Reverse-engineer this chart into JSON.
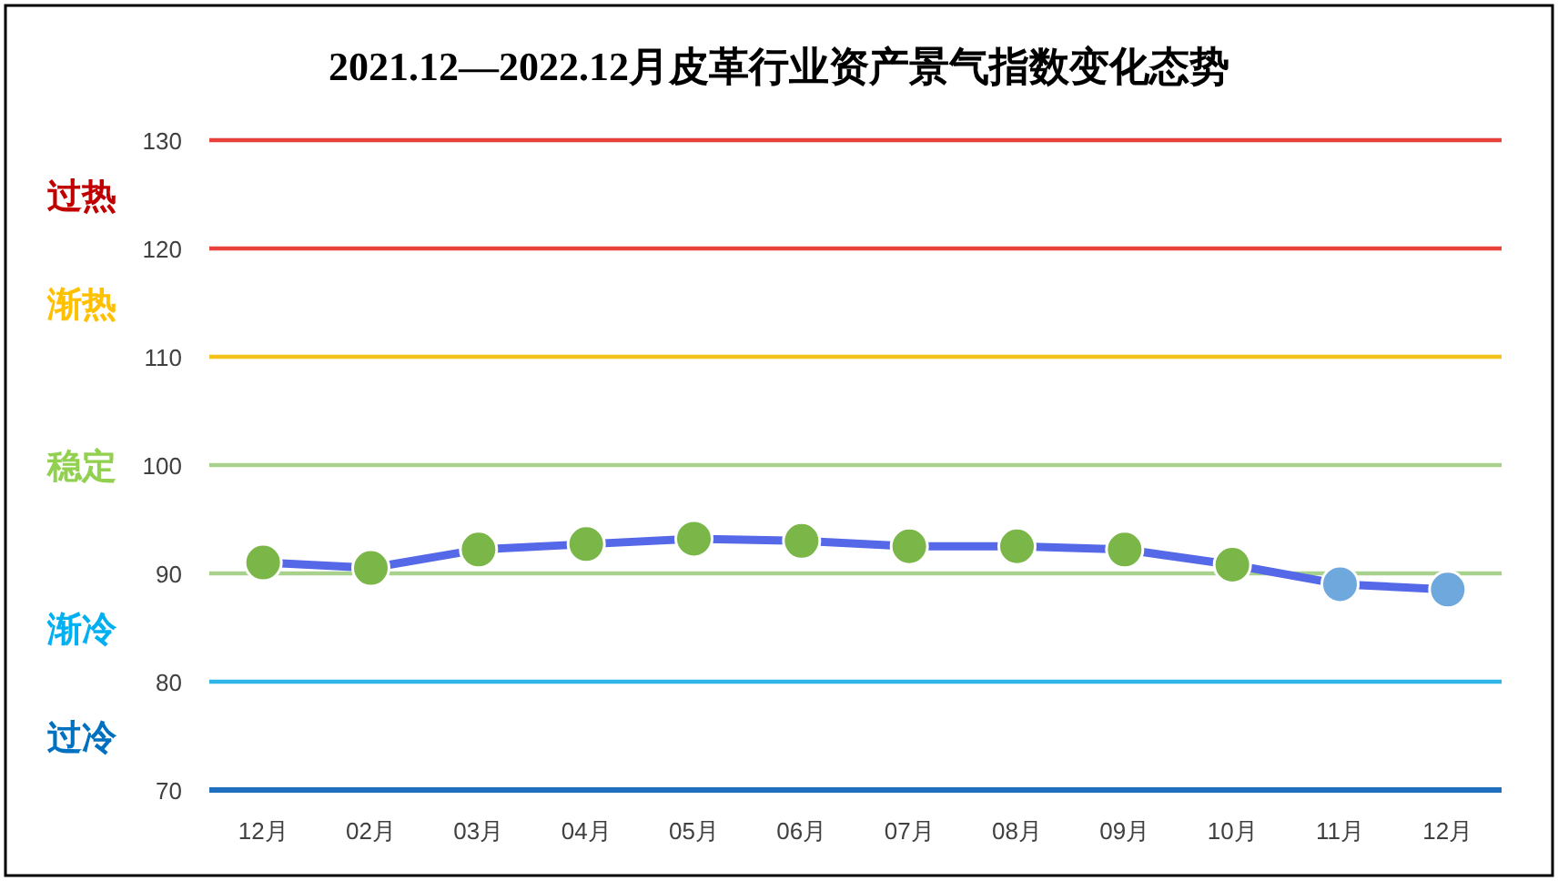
{
  "chart_data": {
    "type": "line",
    "title": "2021.12—2022.12月皮革行业资产景气指数变化态势",
    "categories": [
      "12月",
      "02月",
      "03月",
      "04月",
      "05月",
      "06月",
      "07月",
      "08月",
      "09月",
      "10月",
      "11月",
      "12月"
    ],
    "series": [
      {
        "color": "#5468e8",
        "values": [
          91.0,
          90.5,
          92.2,
          92.7,
          93.2,
          93.0,
          92.5,
          92.5,
          92.2,
          90.8,
          89.0,
          88.5
        ],
        "colors": [
          "#7ab648",
          "#7ab648",
          "#7ab648",
          "#7ab648",
          "#7ab648",
          "#7ab648",
          "#7ab648",
          "#7ab648",
          "#7ab648",
          "#7ab648",
          "#6fa8dc",
          "#6fa8dc"
        ]
      }
    ],
    "ylim": [
      70,
      130
    ],
    "yticks": [
      70,
      80,
      90,
      100,
      110,
      120,
      130
    ],
    "marker": "circle",
    "line_style": "solid",
    "ref_lines": [
      {
        "axis": "y",
        "value": 130,
        "color": "#e8413c"
      },
      {
        "axis": "y",
        "value": 120,
        "color": "#e8413c"
      },
      {
        "axis": "y",
        "value": 110,
        "color": "#f5c21b"
      },
      {
        "axis": "y",
        "value": 100,
        "color": "#a9d18e"
      },
      {
        "axis": "y",
        "value": 90,
        "color": "#a9d18e"
      },
      {
        "axis": "y",
        "value": 80,
        "color": "#2fb5e8"
      }
    ],
    "annotations": [
      "过热",
      "渐热",
      "稳定",
      "渐冷",
      "过冷"
    ]
  }
}
